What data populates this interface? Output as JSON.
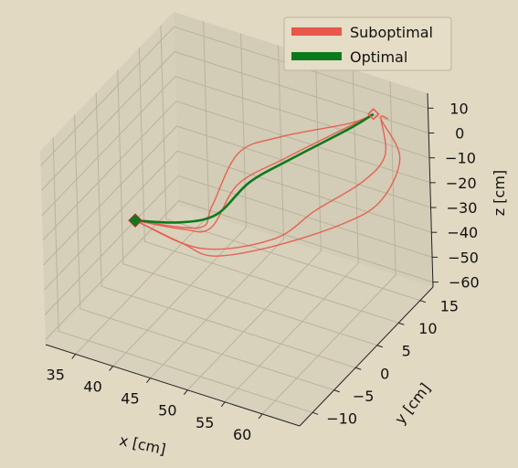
{
  "chart_data": {
    "type": "line",
    "projection": "3d",
    "xlabel": "x [cm]",
    "ylabel": "y [cm]",
    "zlabel": "z [cm]",
    "xticks": [
      35,
      40,
      45,
      50,
      55,
      60
    ],
    "yticks": [
      -10,
      -5,
      0,
      5,
      10,
      15
    ],
    "zticks": [
      10,
      0,
      -10,
      -20,
      -30,
      -40,
      -50,
      -60
    ],
    "xlim": [
      31,
      65
    ],
    "ylim": [
      -13,
      18
    ],
    "zlim": [
      -62,
      16
    ],
    "grid": true,
    "legend_position": "top-right",
    "colors": {
      "suboptimal": "#e8574a",
      "optimal": "#0b7a1c",
      "start_marker": "#0b7a1c",
      "pane": "#d6cfba",
      "background": "#e2d9c2"
    },
    "series": [
      {
        "name": "Suboptimal",
        "group": "suboptimal",
        "points": [
          [
            34,
            3,
            -38
          ],
          [
            42,
            4,
            -35
          ],
          [
            45,
            2,
            -20
          ],
          [
            47,
            5,
            -2
          ],
          [
            51,
            8,
            3
          ],
          [
            58,
            12,
            8
          ],
          [
            60,
            14,
            10
          ]
        ]
      },
      {
        "name": "Suboptimal",
        "group": "suboptimal",
        "points": [
          [
            34,
            3,
            -38
          ],
          [
            41,
            2,
            -33
          ],
          [
            46,
            0,
            -24
          ],
          [
            48,
            3,
            -10
          ],
          [
            52,
            7,
            -3
          ],
          [
            58,
            12,
            7
          ],
          [
            60,
            14,
            10
          ]
        ]
      },
      {
        "name": "Suboptimal",
        "group": "suboptimal",
        "points": [
          [
            34,
            3,
            -38
          ],
          [
            42,
            0,
            -34
          ],
          [
            48,
            -3,
            -28
          ],
          [
            54,
            0,
            -24
          ],
          [
            60,
            6,
            -20
          ],
          [
            63,
            10,
            -15
          ],
          [
            64,
            13,
            -2
          ],
          [
            61,
            14,
            9
          ],
          [
            62,
            14,
            10
          ]
        ]
      },
      {
        "name": "Suboptimal",
        "group": "suboptimal",
        "points": [
          [
            34,
            3,
            -38
          ],
          [
            44,
            1,
            -36
          ],
          [
            52,
            4,
            -30
          ],
          [
            56,
            7,
            -20
          ],
          [
            60,
            11,
            -12
          ],
          [
            62,
            13,
            -3
          ],
          [
            61,
            14,
            9
          ]
        ]
      }
    ],
    "optimal": {
      "name": "Optimal",
      "group": "optimal",
      "points": [
        [
          34,
          3,
          -38
        ],
        [
          40,
          3,
          -33
        ],
        [
          45,
          3,
          -25
        ],
        [
          49,
          4,
          -10
        ],
        [
          53,
          7,
          -2
        ],
        [
          58,
          12,
          6
        ],
        [
          60,
          14,
          10
        ]
      ]
    },
    "legend": [
      {
        "label": "Suboptimal",
        "group": "suboptimal"
      },
      {
        "label": "Optimal",
        "group": "optimal"
      }
    ]
  }
}
